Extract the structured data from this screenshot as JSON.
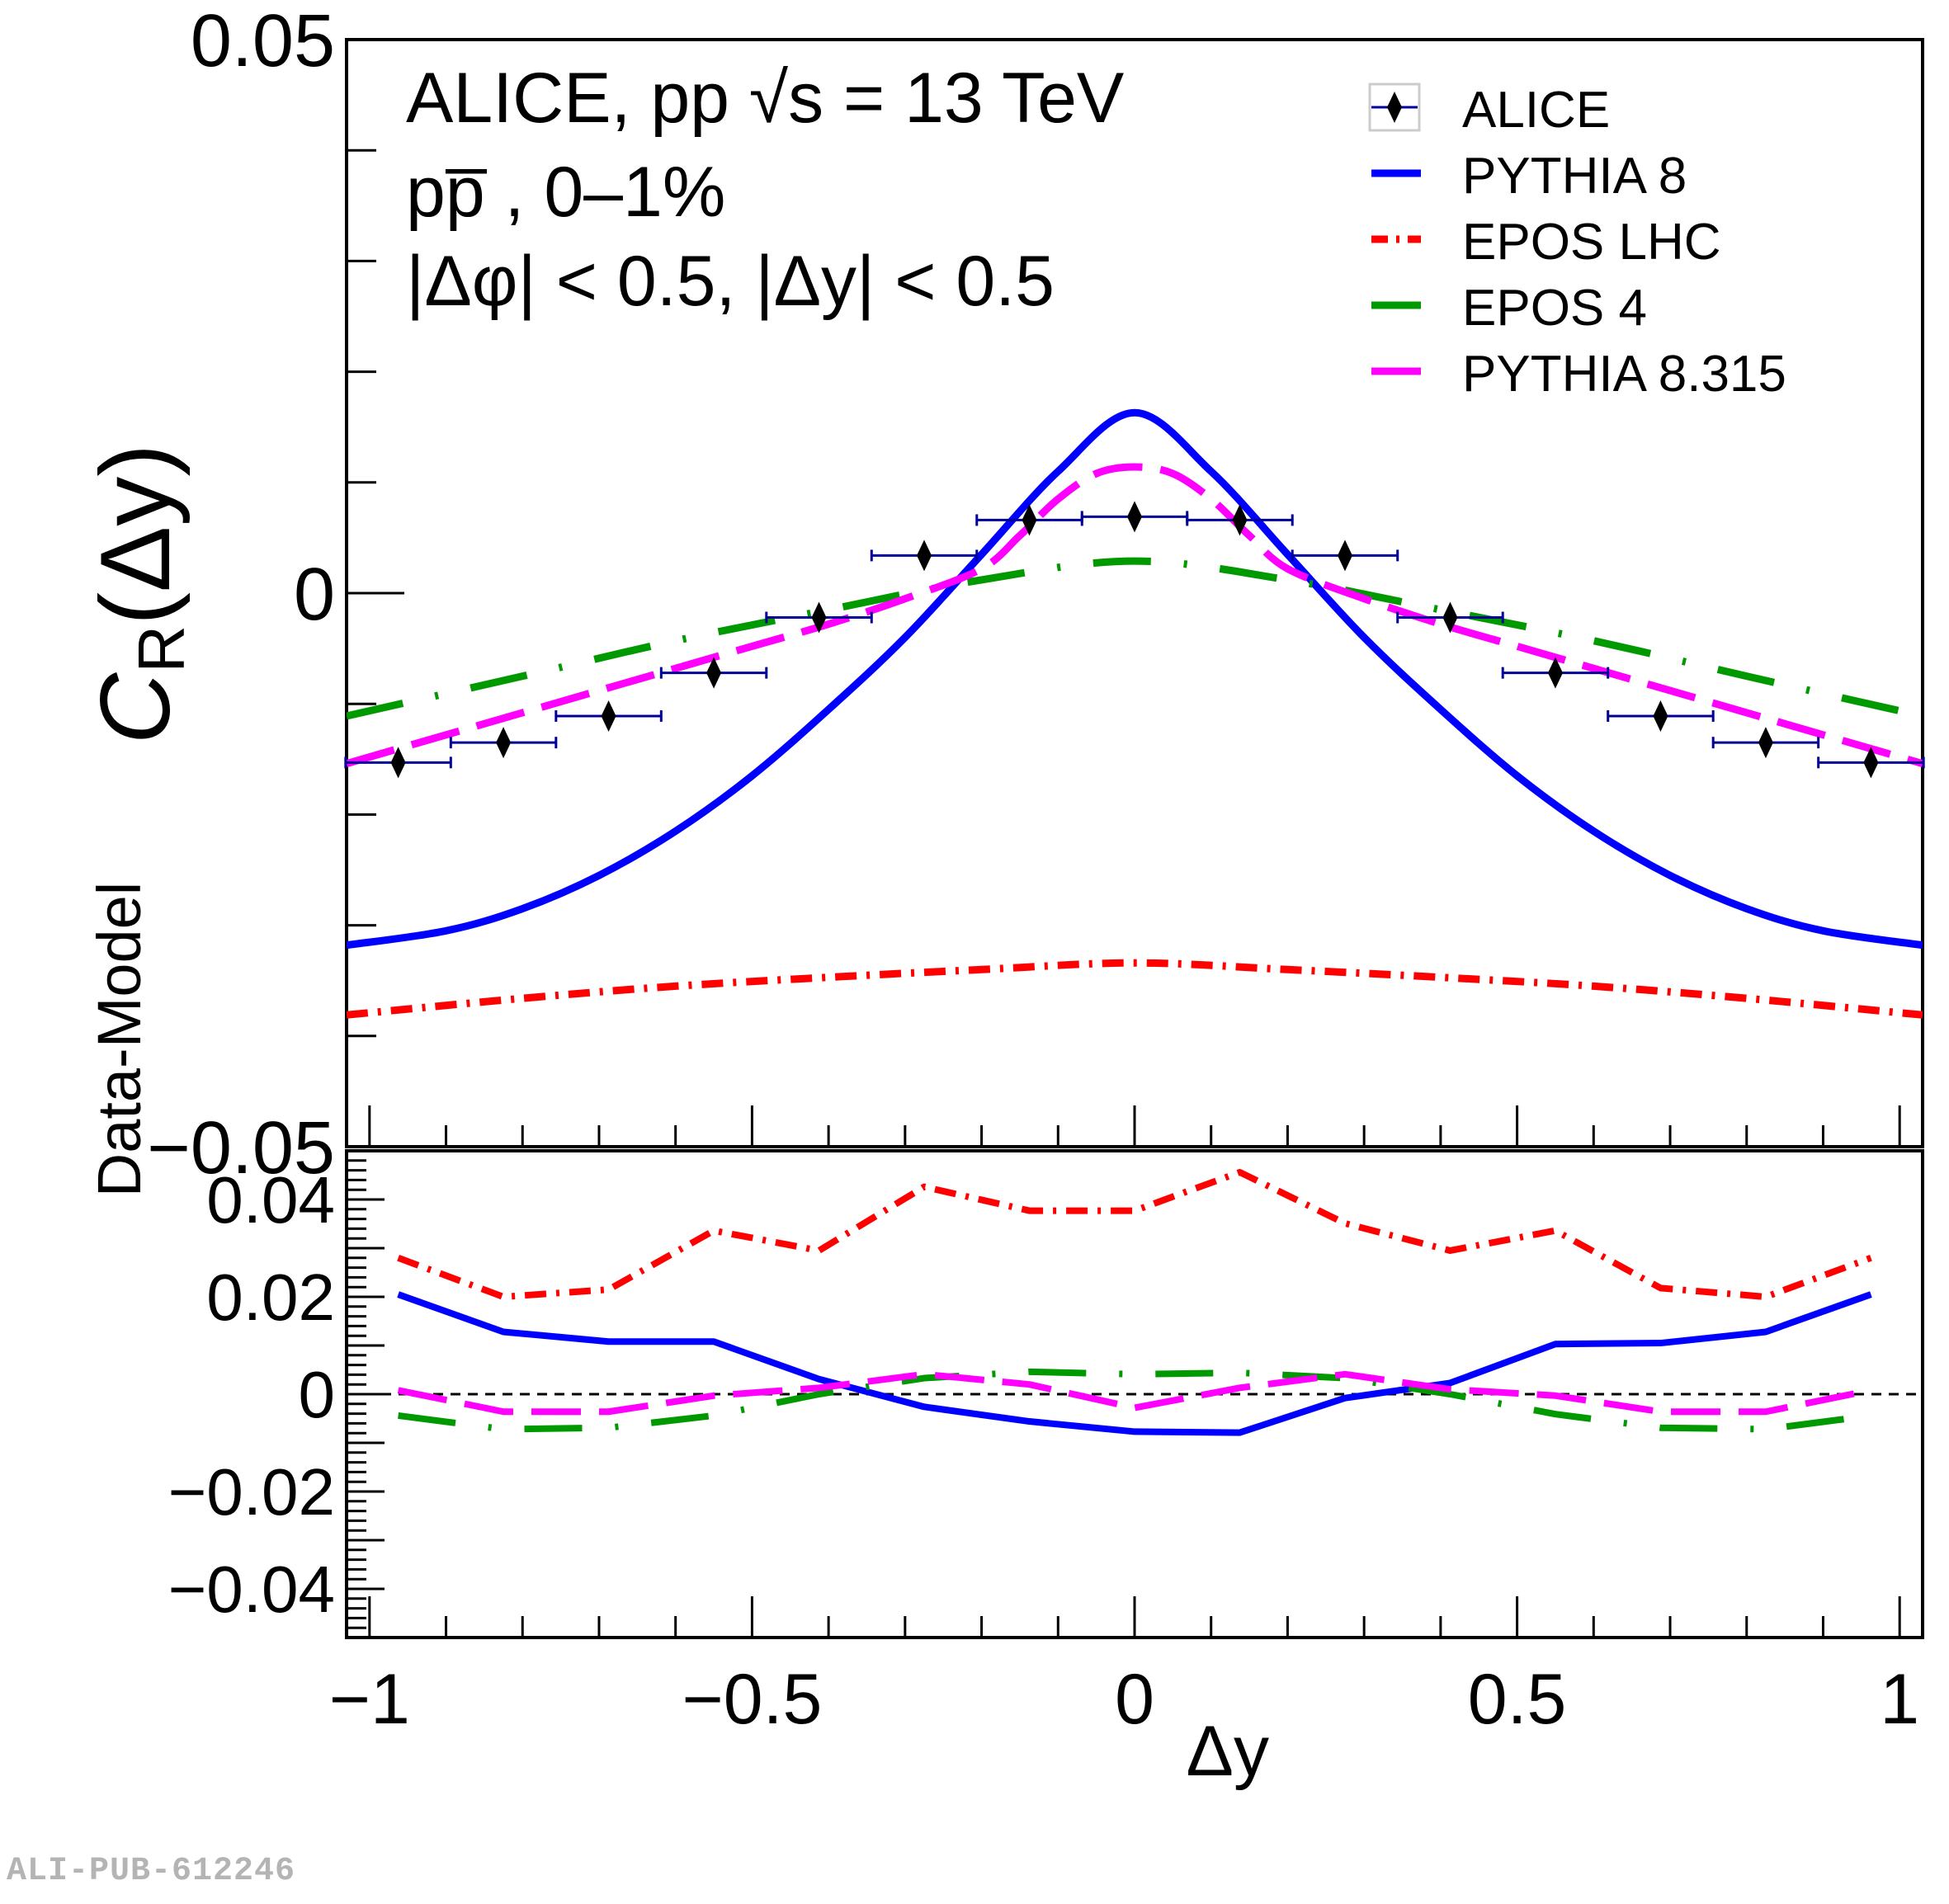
{
  "chart_data": [
    {
      "panel": "main",
      "type": "line",
      "title_lines": [
        "ALICE, pp √s = 13 TeV",
        "pp̅ , 0–1%",
        "|Δφ| < 0.5, |Δy| < 0.5"
      ],
      "xlabel": "Δy",
      "ylabel": "C_R(Δy)",
      "ylabel_main": "C",
      "ylabel_sub": "R",
      "ylabel_tail": "(Δy)",
      "xlim": [
        -1.03,
        1.03
      ],
      "ylim": [
        -0.05,
        0.05
      ],
      "yticks": [
        -0.05,
        0,
        0.05
      ],
      "ytick_labels": [
        "−0.05",
        "0",
        "0.05"
      ],
      "xticks": [
        -1,
        -0.5,
        0,
        0.5,
        1
      ],
      "xtick_labels": [
        "−1",
        "−0.5",
        "0",
        "0.5",
        "1"
      ],
      "grid": false,
      "legend_position": "top-right",
      "legend": [
        {
          "label": "ALICE",
          "style": "marker",
          "color": "#000000",
          "errcolor": "#000099"
        },
        {
          "label": "PYTHIA 8",
          "style": "solid",
          "color": "#0000ff"
        },
        {
          "label": "EPOS LHC",
          "style": "dashdot",
          "color": "#ff0000"
        },
        {
          "label": "EPOS 4",
          "style": "longdashdot",
          "color": "#009900"
        },
        {
          "label": "PYTHIA 8.315",
          "style": "dashed",
          "color": "#ff00ff"
        }
      ],
      "data_points": {
        "name": "ALICE",
        "x": [
          -0.9625,
          -0.825,
          -0.6875,
          -0.55,
          -0.4125,
          -0.275,
          -0.1375,
          0,
          0.1375,
          0.275,
          0.4125,
          0.55,
          0.6875,
          0.825,
          0.9625
        ],
        "xerr": 0.06875,
        "y": [
          -0.0153,
          -0.0135,
          -0.0111,
          -0.0072,
          -0.0022,
          0.0034,
          0.0066,
          0.0069,
          0.0066,
          0.0034,
          -0.0022,
          -0.0072,
          -0.0111,
          -0.0135,
          -0.0153
        ]
      },
      "series": [
        {
          "name": "PYTHIA 8",
          "color": "#0000ff",
          "style": "solid",
          "x": [
            -1.03,
            -0.9,
            -0.8,
            -0.7,
            -0.6,
            -0.5,
            -0.4,
            -0.3,
            -0.2,
            -0.1,
            0,
            0.1,
            0.2,
            0.3,
            0.4,
            0.5,
            0.6,
            0.7,
            0.8,
            0.9,
            1.03
          ],
          "y": [
            -0.0318,
            -0.0305,
            -0.0285,
            -0.0255,
            -0.0215,
            -0.0165,
            -0.0105,
            -0.004,
            0.0035,
            0.011,
            0.0163,
            0.011,
            0.0035,
            -0.004,
            -0.0105,
            -0.0165,
            -0.0215,
            -0.0255,
            -0.0285,
            -0.0305,
            -0.0318
          ]
        },
        {
          "name": "EPOS LHC",
          "color": "#ff0000",
          "style": "dashdot",
          "x": [
            -1.03,
            -0.8,
            -0.6,
            -0.4,
            -0.2,
            0,
            0.2,
            0.4,
            0.6,
            0.8,
            1.03
          ],
          "y": [
            -0.0381,
            -0.0366,
            -0.0355,
            -0.0347,
            -0.034,
            -0.0334,
            -0.034,
            -0.0347,
            -0.0355,
            -0.0366,
            -0.0381
          ]
        },
        {
          "name": "EPOS 4",
          "color": "#009900",
          "style": "longdashdot",
          "x": [
            -1.03,
            -0.8,
            -0.6,
            -0.4,
            -0.2,
            0,
            0.2,
            0.4,
            0.6,
            0.8,
            1.03
          ],
          "y": [
            -0.0111,
            -0.0075,
            -0.0043,
            -0.0015,
            0.0012,
            0.0029,
            0.0012,
            -0.0015,
            -0.0043,
            -0.0075,
            -0.0111
          ]
        },
        {
          "name": "PYTHIA 8.315",
          "color": "#ff00ff",
          "style": "dashed",
          "x": [
            -1.03,
            -0.9,
            -0.8,
            -0.7,
            -0.6,
            -0.5,
            -0.4,
            -0.3,
            -0.2,
            -0.15,
            -0.1,
            -0.05,
            0,
            0.05,
            0.1,
            0.15,
            0.2,
            0.3,
            0.4,
            0.5,
            0.6,
            0.7,
            0.8,
            0.9,
            1.03
          ],
          "y": [
            -0.0154,
            -0.0128,
            -0.0108,
            -0.0088,
            -0.0068,
            -0.0048,
            -0.0028,
            -0.0005,
            0.0022,
            0.0052,
            0.0085,
            0.0108,
            0.0114,
            0.0108,
            0.0085,
            0.0052,
            0.0022,
            -0.0005,
            -0.0028,
            -0.0048,
            -0.0068,
            -0.0088,
            -0.0108,
            -0.0128,
            -0.0154
          ]
        }
      ]
    },
    {
      "panel": "ratio",
      "type": "line",
      "xlabel": "Δy",
      "ylabel": "Data-Model",
      "xlim": [
        -1.03,
        1.03
      ],
      "ylim": [
        -0.05,
        0.05
      ],
      "yticks": [
        -0.04,
        -0.02,
        0,
        0.02,
        0.04
      ],
      "ytick_labels": [
        "−0.04",
        "−0.02",
        "0",
        "0.02",
        "0.04"
      ],
      "reference_line": 0,
      "x": [
        -0.9625,
        -0.825,
        -0.6875,
        -0.55,
        -0.4125,
        -0.275,
        -0.1375,
        0,
        0.1375,
        0.275,
        0.4125,
        0.55,
        0.6875,
        0.825,
        0.9625
      ],
      "series": [
        {
          "name": "EPOS LHC",
          "color": "#ff0000",
          "style": "dashdot",
          "y": [
            0.028,
            0.02,
            0.0215,
            0.0336,
            0.0295,
            0.0426,
            0.0377,
            0.0377,
            0.0456,
            0.0351,
            0.0295,
            0.0336,
            0.0218,
            0.02,
            0.028
          ]
        },
        {
          "name": "PYTHIA 8",
          "color": "#0000ff",
          "style": "solid",
          "y": [
            0.0205,
            0.0128,
            0.0108,
            0.0108,
            0.0031,
            -0.0026,
            -0.0056,
            -0.0077,
            -0.0079,
            -0.0008,
            0.0023,
            0.0103,
            0.0105,
            0.0128,
            0.0205
          ]
        },
        {
          "name": "EPOS 4",
          "color": "#009900",
          "style": "longdashdot",
          "y": [
            -0.0044,
            -0.0072,
            -0.0069,
            -0.0044,
            0.0,
            0.0033,
            0.0046,
            0.0041,
            0.0044,
            0.0033,
            0.0,
            -0.0041,
            -0.0069,
            -0.0072,
            -0.0044
          ]
        },
        {
          "name": "PYTHIA 8.315",
          "color": "#ff00ff",
          "style": "dashed",
          "y": [
            0.0008,
            -0.0036,
            -0.0036,
            -0.0003,
            0.0013,
            0.0041,
            0.002,
            -0.0028,
            0.0013,
            0.0041,
            0.001,
            -0.0003,
            -0.0036,
            -0.0036,
            0.0008
          ]
        }
      ]
    }
  ],
  "watermark": "ALI-PUB-612246"
}
